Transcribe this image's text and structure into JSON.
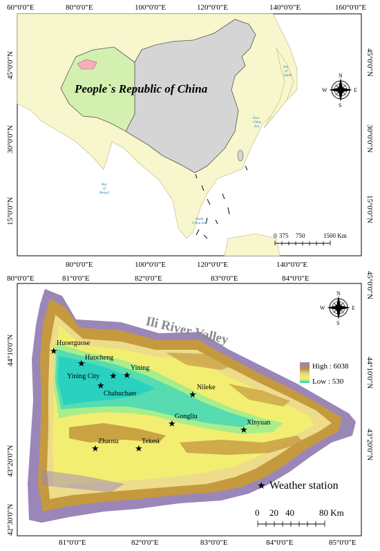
{
  "top_map": {
    "title": "People`s Republic of China",
    "top_lon_labels": [
      "60°0'0\"E",
      "80°0'0\"E",
      "100°0'0\"E",
      "120°0'0\"E",
      "140°0'0\"E",
      "160°0'0\"E"
    ],
    "bottom_lon_labels": [
      "80°0'0\"E",
      "100°0'0\"E",
      "120°0'0\"E",
      "140°0'0\"E"
    ],
    "lat_labels": [
      "45°0'0\"N",
      "30°0'0\"N",
      "15°0'0\"N"
    ],
    "seas": {
      "japan": [
        "Sea",
        "of",
        "Japan"
      ],
      "east_china": [
        "East",
        "China",
        "Sea"
      ],
      "bengal": [
        "Bay",
        "of",
        "Bengal"
      ],
      "south_china": [
        "South",
        "China Sea"
      ]
    },
    "scale_labels": [
      "0",
      "375",
      "750",
      "1500 Km"
    ],
    "compass": {
      "n": "N",
      "s": "S",
      "e": "E",
      "w": "W"
    }
  },
  "bottom_map": {
    "title": "Ili River Valley",
    "top_lon_labels": [
      "80°0'0\"E",
      "81°0'0\"E",
      "82°0'0\"E",
      "83°0'0\"E",
      "84°0'0\"E"
    ],
    "bottom_lon_labels": [
      "81°0'0\"E",
      "82°0'0\"E",
      "83°0'0\"E",
      "84°0'0\"E",
      "85°0'0\"E"
    ],
    "left_lat_labels": [
      "44°10'0\"N",
      "43°20'0\"N",
      "42°30'0\"N"
    ],
    "right_lat_labels": [
      "45°0'0\"N",
      "44°10'0\"N",
      "43°20'0\"N"
    ],
    "stations": [
      "Huoerguose",
      "Huocheng",
      "Yining City",
      "Yining",
      "Chabuchaer",
      "Nileke",
      "Gongliu",
      "Xinyuan",
      "Zhaosu",
      "Tekesi"
    ],
    "legend": {
      "high": "High : 6038",
      "low": "Low : 530",
      "station": "Weather station"
    },
    "scale_labels": [
      "0",
      "20",
      "40",
      "80 Km"
    ],
    "compass": {
      "n": "N",
      "s": "S",
      "e": "E",
      "w": "W"
    },
    "colors": {
      "high": "#9b86b8",
      "mid": "#c59a3e",
      "low": "#2ad0c0"
    }
  }
}
